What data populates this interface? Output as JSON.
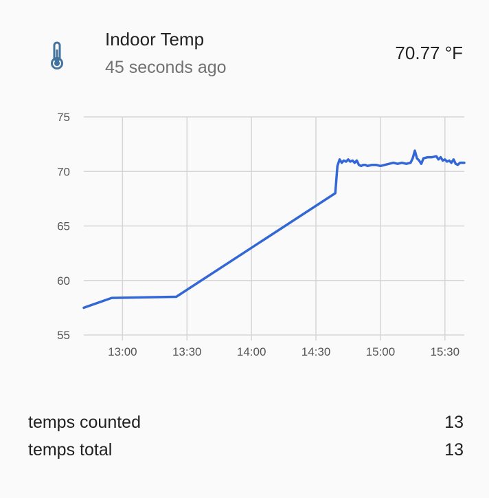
{
  "header": {
    "entity_name": "Indoor Temp",
    "last_changed": "45 seconds ago",
    "state": "70.77 °F",
    "icon": "thermometer-icon",
    "icon_color": "#44739e"
  },
  "chart_data": {
    "type": "line",
    "x_tick_labels": [
      "13:00",
      "13:30",
      "14:00",
      "14:30",
      "15:00",
      "15:30"
    ],
    "y_tick_labels": [
      "75",
      "70",
      "65",
      "60",
      "55"
    ],
    "ylim": [
      55,
      75
    ],
    "xlim": [
      "12:42",
      "15:39"
    ],
    "grid": true,
    "line_color": "#3367d6",
    "series": [
      {
        "x": [
          "12:42",
          "12:55",
          "13:25",
          "14:39",
          "14:40",
          "14:41",
          "14:42",
          "14:43",
          "14:44",
          "14:45",
          "14:46",
          "14:47",
          "14:48",
          "14:49",
          "14:50",
          "14:51",
          "14:52",
          "14:53",
          "14:54",
          "14:56",
          "14:58",
          "15:00",
          "15:02",
          "15:04",
          "15:06",
          "15:08",
          "15:10",
          "15:12",
          "15:14",
          "15:15",
          "15:16",
          "15:17",
          "15:18",
          "15:19",
          "15:20",
          "15:22",
          "15:24",
          "15:26",
          "15:27",
          "15:28",
          "15:29",
          "15:30",
          "15:31",
          "15:32",
          "15:33",
          "15:34",
          "15:35",
          "15:36",
          "15:37",
          "15:39"
        ],
        "values": [
          57.5,
          58.4,
          58.5,
          68.0,
          70.5,
          71.1,
          70.8,
          71.0,
          70.9,
          71.1,
          70.9,
          71.0,
          70.8,
          71.0,
          70.6,
          70.5,
          70.6,
          70.6,
          70.5,
          70.6,
          70.6,
          70.5,
          70.6,
          70.7,
          70.8,
          70.7,
          70.8,
          70.7,
          70.8,
          71.2,
          71.9,
          71.2,
          71.0,
          70.7,
          71.2,
          71.3,
          71.3,
          71.4,
          71.1,
          71.3,
          71.0,
          71.1,
          70.9,
          71.0,
          70.8,
          71.1,
          70.7,
          70.6,
          70.8,
          70.8
        ]
      }
    ]
  },
  "attributes": [
    {
      "label": "temps counted",
      "value": "13"
    },
    {
      "label": "temps total",
      "value": "13"
    }
  ]
}
